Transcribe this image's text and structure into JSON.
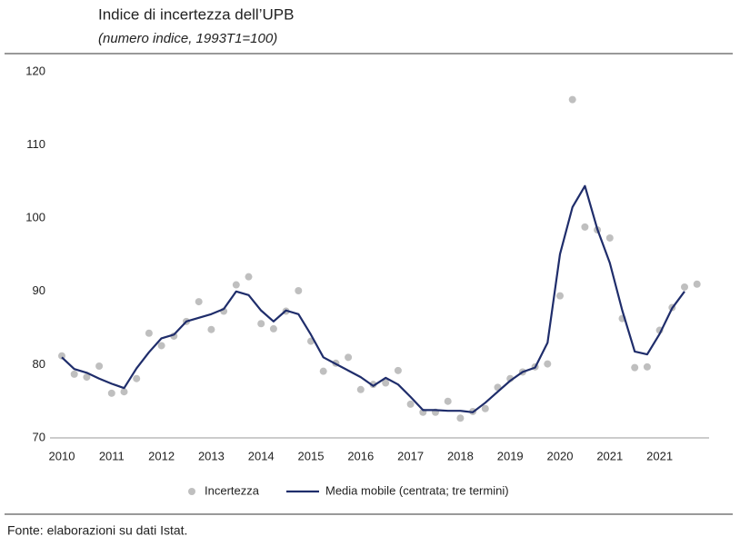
{
  "chart_data": {
    "type": "line",
    "title": "Indice di incertezza dell’UPB",
    "subtitle": "(numero indice, 1993T1=100)",
    "source": "Fonte: elaborazioni su dati Istat.",
    "categories": [
      "2010",
      null,
      null,
      null,
      "2011",
      null,
      null,
      null,
      "2012",
      null,
      null,
      null,
      "2013",
      null,
      null,
      null,
      "2014",
      null,
      null,
      null,
      "2015",
      null,
      null,
      null,
      "2016",
      null,
      null,
      null,
      "2017",
      null,
      null,
      null,
      "2018",
      null,
      null,
      null,
      "2019",
      null,
      null,
      null,
      "2020",
      null,
      null,
      null,
      "2021",
      null,
      null,
      null,
      "2021",
      null,
      null,
      null
    ],
    "series": [
      {
        "name": "Incertezza",
        "color": "#bfbfbf",
        "style": "dots",
        "values": [
          81.2,
          78.7,
          78.3,
          79.8,
          76.1,
          76.3,
          78.1,
          84.3,
          82.6,
          83.9,
          85.9,
          88.6,
          84.8,
          87.3,
          90.9,
          92.0,
          85.6,
          84.9,
          87.3,
          90.1,
          83.2,
          79.1,
          80.2,
          81.0,
          76.6,
          77.3,
          77.5,
          79.2,
          74.6,
          73.5,
          73.5,
          75.0,
          72.7,
          73.6,
          74.0,
          76.9,
          78.1,
          79.0,
          79.7,
          80.1,
          89.4,
          116.2,
          98.8,
          98.4,
          97.3,
          86.3,
          79.6,
          79.7,
          84.7,
          87.8,
          90.6,
          91.0
        ]
      },
      {
        "name": "Media mobile (centrata; tre termini)",
        "color": "#1f2d6b",
        "style": "line",
        "values": [
          81.0,
          79.4,
          78.9,
          78.1,
          77.4,
          76.8,
          79.5,
          81.7,
          83.6,
          84.1,
          85.9,
          86.4,
          86.9,
          87.6,
          90.0,
          89.5,
          87.4,
          85.9,
          87.4,
          86.9,
          84.1,
          81.0,
          80.1,
          79.2,
          78.3,
          77.1,
          78.2,
          77.3,
          75.6,
          73.8,
          73.8,
          73.7,
          73.7,
          73.5,
          74.8,
          76.3,
          77.8,
          79.0,
          79.6,
          83.0,
          95.1,
          101.5,
          104.4,
          98.5,
          93.9,
          87.4,
          81.8,
          81.4,
          84.2,
          87.7,
          90.0,
          null
        ]
      }
    ],
    "ylim": [
      70,
      120
    ],
    "yticks": [
      70,
      80,
      90,
      100,
      110,
      120
    ],
    "grid": false,
    "legend": "bottom"
  }
}
